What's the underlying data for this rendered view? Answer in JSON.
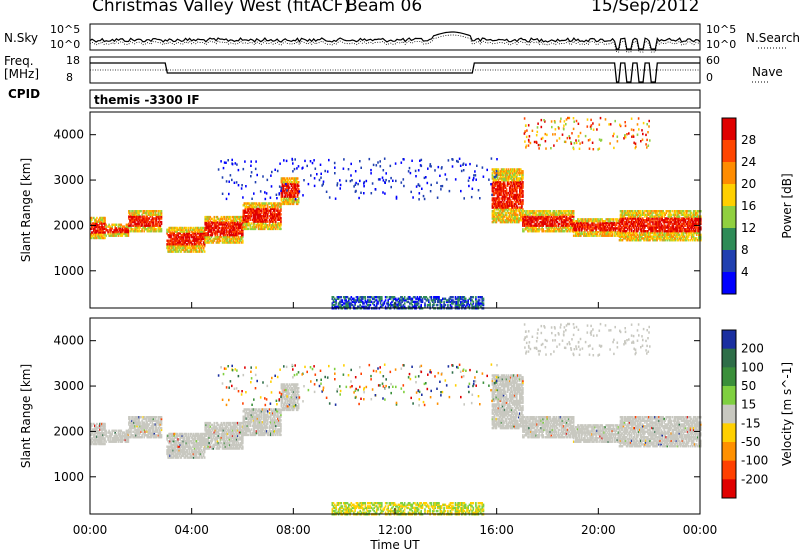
{
  "header": {
    "title": "Christmas Valley West (fitACF)",
    "beam": "Beam 06",
    "date": "15/Sep/2012"
  },
  "top_panels": {
    "nsky_label": "N.Sky",
    "nsky_ticks": [
      "10^5",
      "10^0"
    ],
    "nsearch_label": "N.Search",
    "nsearch_ticks": [
      "10^5",
      "10^0"
    ],
    "freq_label": "Freq.",
    "freq_unit": "[MHz]",
    "freq_ticks": [
      "18",
      "8"
    ],
    "nave_label": "Nave",
    "nave_ticks": [
      "60",
      "0"
    ],
    "cpid_label": "CPID",
    "cpid_text": "themis -3300 IF"
  },
  "chart_data": [
    {
      "type": "heatmap",
      "name": "power",
      "ylabel": "Slant Range [km]",
      "yticks": [
        1000,
        2000,
        3000,
        4000
      ],
      "ylim": [
        180,
        4500
      ],
      "xlim": [
        0,
        24
      ],
      "colorbar": {
        "label": "Power [dB]",
        "ticks": [
          "28",
          "24",
          "20",
          "16",
          "12",
          "8",
          "4"
        ],
        "colors": [
          "#e00000",
          "#ff4500",
          "#ff8c00",
          "#ffd000",
          "#90d040",
          "#2e8b57",
          "#2040b0",
          "#0000ff"
        ]
      },
      "bands": [
        {
          "t0": 0.0,
          "t1": 0.6,
          "r0": 1750,
          "r1": 2200
        },
        {
          "t0": 0.6,
          "t1": 1.5,
          "r0": 1800,
          "r1": 2050
        },
        {
          "t0": 1.5,
          "t1": 2.8,
          "r0": 1900,
          "r1": 2350
        },
        {
          "t0": 3.0,
          "t1": 4.5,
          "r0": 1450,
          "r1": 2000
        },
        {
          "t0": 4.5,
          "t1": 6.0,
          "r0": 1650,
          "r1": 2250
        },
        {
          "t0": 6.0,
          "t1": 7.5,
          "r0": 1950,
          "r1": 2550
        },
        {
          "t0": 7.5,
          "t1": 8.2,
          "r0": 2500,
          "r1": 3100
        },
        {
          "t0": 15.8,
          "t1": 17.0,
          "r0": 2100,
          "r1": 3300
        },
        {
          "t0": 17.0,
          "t1": 19.0,
          "r0": 1900,
          "r1": 2350
        },
        {
          "t0": 19.0,
          "t1": 20.8,
          "r0": 1800,
          "r1": 2200
        },
        {
          "t0": 20.8,
          "t1": 24.0,
          "r0": 1700,
          "r1": 2350
        }
      ]
    },
    {
      "type": "heatmap",
      "name": "velocity",
      "xlabel": "Time UT",
      "ylabel": "Slant Range [km]",
      "xticks": [
        "00:00",
        "04:00",
        "08:00",
        "12:00",
        "16:00",
        "20:00",
        "00:00"
      ],
      "yticks": [
        1000,
        2000,
        3000,
        4000
      ],
      "ylim": [
        180,
        4500
      ],
      "xlim": [
        0,
        24
      ],
      "colorbar": {
        "label": "Velocity [m s^-1]",
        "ticks": [
          "200",
          "100",
          "50",
          "15",
          "-15",
          "-50",
          "-100",
          "-200"
        ],
        "colors": [
          "#1a2fa0",
          "#2e6e48",
          "#3a8f3a",
          "#7fd040",
          "#c8c8c0",
          "#ffd000",
          "#ff9000",
          "#ff4000",
          "#e00000"
        ]
      }
    }
  ]
}
